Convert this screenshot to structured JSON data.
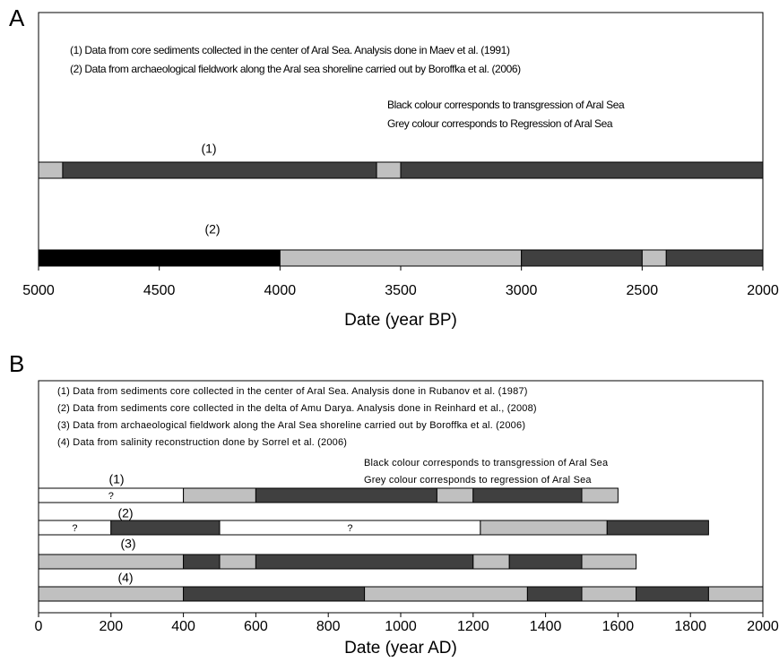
{
  "chart_data": [
    {
      "type": "timeline",
      "panel_label": "A",
      "notes": [
        "(1) Data from core sediments collected in the center of Aral Sea. Analysis done in Maev et al. (1991)",
        "(2) Data from archaeological fieldwork along the Aral sea shoreline carried out by Boroffka et al. (2006)"
      ],
      "legend_notes": [
        "Black colour corresponds to transgression of Aral Sea",
        "Grey colour corresponds to Regression of Aral Sea"
      ],
      "xlabel": "Date (year BP)",
      "xlim": [
        5000,
        2000
      ],
      "xticks": [
        5000,
        4500,
        4000,
        3500,
        3000,
        2500,
        2000
      ],
      "rows": [
        {
          "label": "(1)",
          "segments": [
            {
              "start": 5000,
              "end": 4900,
              "color": "#c0c0c0"
            },
            {
              "start": 4900,
              "end": 3600,
              "color": "#404040"
            },
            {
              "start": 3600,
              "end": 3500,
              "color": "#c0c0c0"
            },
            {
              "start": 3500,
              "end": 2000,
              "color": "#404040"
            }
          ]
        },
        {
          "label": "(2)",
          "segments": [
            {
              "start": 5000,
              "end": 4000,
              "color": "#000000"
            },
            {
              "start": 4000,
              "end": 3000,
              "color": "#c0c0c0"
            },
            {
              "start": 3000,
              "end": 2500,
              "color": "#404040"
            },
            {
              "start": 2500,
              "end": 2400,
              "color": "#c0c0c0"
            },
            {
              "start": 2400,
              "end": 2000,
              "color": "#404040"
            }
          ]
        }
      ]
    },
    {
      "type": "timeline",
      "panel_label": "B",
      "notes": [
        "(1) Data from sediments core collected in the center of Aral Sea. Analysis done in Rubanov et al. (1987)",
        "(2) Data from sediments core collected in the delta of Amu Darya. Analysis done in Reinhard et al., (2008)",
        "(3) Data from archaeological fieldwork along the Aral Sea shoreline carried out by Boroffka et al. (2006)",
        "(4) Data from salinity reconstruction done by Sorrel et al. (2006)"
      ],
      "legend_notes": [
        "Black colour corresponds to transgression of Aral Sea",
        "Grey colour corresponds to regression of Aral Sea"
      ],
      "xlabel": "Date (year AD)",
      "xlim": [
        0,
        2000
      ],
      "xticks": [
        0,
        200,
        400,
        600,
        800,
        1000,
        1200,
        1400,
        1600,
        1800,
        2000
      ],
      "rows": [
        {
          "label": "(1)",
          "segments": [
            {
              "start": 0,
              "end": 400,
              "color": "#ffffff",
              "label": "?"
            },
            {
              "start": 400,
              "end": 600,
              "color": "#c0c0c0"
            },
            {
              "start": 600,
              "end": 1100,
              "color": "#404040"
            },
            {
              "start": 1100,
              "end": 1200,
              "color": "#c0c0c0"
            },
            {
              "start": 1200,
              "end": 1500,
              "color": "#404040"
            },
            {
              "start": 1500,
              "end": 1600,
              "color": "#c0c0c0"
            }
          ]
        },
        {
          "label": "(2)",
          "segments": [
            {
              "start": 0,
              "end": 200,
              "color": "#ffffff",
              "label": "?"
            },
            {
              "start": 200,
              "end": 500,
              "color": "#404040"
            },
            {
              "start": 500,
              "end": 1220,
              "color": "#ffffff",
              "label": "?"
            },
            {
              "start": 1220,
              "end": 1570,
              "color": "#c0c0c0"
            },
            {
              "start": 1570,
              "end": 1850,
              "color": "#404040"
            }
          ]
        },
        {
          "label": "(3)",
          "segments": [
            {
              "start": 0,
              "end": 400,
              "color": "#c0c0c0"
            },
            {
              "start": 400,
              "end": 500,
              "color": "#404040"
            },
            {
              "start": 500,
              "end": 600,
              "color": "#c0c0c0"
            },
            {
              "start": 600,
              "end": 1200,
              "color": "#404040"
            },
            {
              "start": 1200,
              "end": 1300,
              "color": "#c0c0c0"
            },
            {
              "start": 1300,
              "end": 1500,
              "color": "#404040"
            },
            {
              "start": 1500,
              "end": 1650,
              "color": "#c0c0c0"
            }
          ]
        },
        {
          "label": "(4)",
          "segments": [
            {
              "start": 0,
              "end": 400,
              "color": "#c0c0c0"
            },
            {
              "start": 400,
              "end": 900,
              "color": "#404040"
            },
            {
              "start": 900,
              "end": 1350,
              "color": "#c0c0c0"
            },
            {
              "start": 1350,
              "end": 1500,
              "color": "#404040"
            },
            {
              "start": 1500,
              "end": 1650,
              "color": "#c0c0c0"
            },
            {
              "start": 1650,
              "end": 1850,
              "color": "#404040"
            },
            {
              "start": 1850,
              "end": 2000,
              "color": "#c0c0c0"
            }
          ]
        }
      ]
    }
  ]
}
